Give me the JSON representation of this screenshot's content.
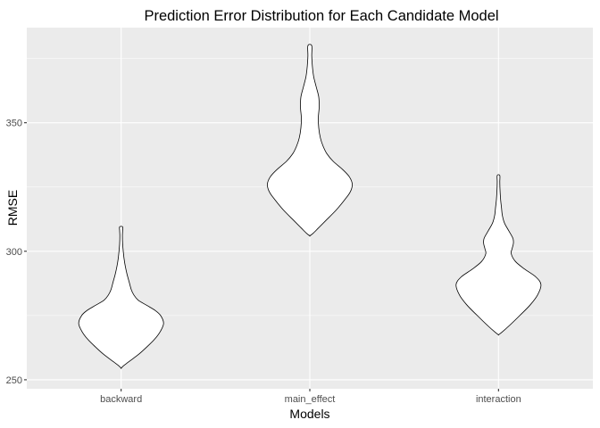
{
  "chart_data": {
    "type": "violin",
    "title": "Prediction Error Distribution for Each Candidate Model",
    "xlabel": "Models",
    "ylabel": "RMSE",
    "categories": [
      "backward",
      "main_effect",
      "interaction"
    ],
    "ylim": [
      246.5,
      387
    ],
    "yticks": [
      250,
      300,
      350
    ],
    "grid": true,
    "legend": "none",
    "colors": {
      "panel": "#ebebeb",
      "grid": "#ffffff",
      "violin_fill": "#ffffff",
      "violin_stroke": "#000000",
      "tick": "#333333"
    },
    "series": [
      {
        "category": "backward",
        "profile": [
          {
            "y": 254.5,
            "w": 0.0
          },
          {
            "y": 255.5,
            "w": 0.06
          },
          {
            "y": 257,
            "w": 0.18
          },
          {
            "y": 260,
            "w": 0.42
          },
          {
            "y": 263,
            "w": 0.62
          },
          {
            "y": 266,
            "w": 0.8
          },
          {
            "y": 269,
            "w": 0.93
          },
          {
            "y": 272,
            "w": 1.0
          },
          {
            "y": 275,
            "w": 0.93
          },
          {
            "y": 277,
            "w": 0.8
          },
          {
            "y": 279,
            "w": 0.6
          },
          {
            "y": 281,
            "w": 0.4
          },
          {
            "y": 283,
            "w": 0.3
          },
          {
            "y": 285,
            "w": 0.24
          },
          {
            "y": 288,
            "w": 0.19
          },
          {
            "y": 291,
            "w": 0.14
          },
          {
            "y": 294,
            "w": 0.1
          },
          {
            "y": 297,
            "w": 0.07
          },
          {
            "y": 300,
            "w": 0.05
          },
          {
            "y": 303,
            "w": 0.035
          },
          {
            "y": 306,
            "w": 0.03
          },
          {
            "y": 308,
            "w": 0.035
          },
          {
            "y": 309.5,
            "w": 0.035
          }
        ]
      },
      {
        "category": "main_effect",
        "profile": [
          {
            "y": 306,
            "w": 0.0
          },
          {
            "y": 307,
            "w": 0.08
          },
          {
            "y": 309,
            "w": 0.2
          },
          {
            "y": 312,
            "w": 0.38
          },
          {
            "y": 316,
            "w": 0.62
          },
          {
            "y": 320,
            "w": 0.82
          },
          {
            "y": 323,
            "w": 0.95
          },
          {
            "y": 326,
            "w": 1.0
          },
          {
            "y": 329,
            "w": 0.93
          },
          {
            "y": 332,
            "w": 0.76
          },
          {
            "y": 335,
            "w": 0.55
          },
          {
            "y": 338,
            "w": 0.4
          },
          {
            "y": 341,
            "w": 0.31
          },
          {
            "y": 344,
            "w": 0.25
          },
          {
            "y": 348,
            "w": 0.21
          },
          {
            "y": 352,
            "w": 0.2
          },
          {
            "y": 356,
            "w": 0.22
          },
          {
            "y": 360,
            "w": 0.21
          },
          {
            "y": 364,
            "w": 0.15
          },
          {
            "y": 368,
            "w": 0.09
          },
          {
            "y": 372,
            "w": 0.06
          },
          {
            "y": 376,
            "w": 0.045
          },
          {
            "y": 380,
            "w": 0.045
          }
        ]
      },
      {
        "category": "interaction",
        "profile": [
          {
            "y": 267.5,
            "w": 0.0
          },
          {
            "y": 268.5,
            "w": 0.08
          },
          {
            "y": 271,
            "w": 0.25
          },
          {
            "y": 275,
            "w": 0.5
          },
          {
            "y": 279,
            "w": 0.74
          },
          {
            "y": 283,
            "w": 0.92
          },
          {
            "y": 287,
            "w": 1.0
          },
          {
            "y": 290,
            "w": 0.88
          },
          {
            "y": 293,
            "w": 0.62
          },
          {
            "y": 296,
            "w": 0.4
          },
          {
            "y": 299,
            "w": 0.3
          },
          {
            "y": 301,
            "w": 0.32
          },
          {
            "y": 303,
            "w": 0.35
          },
          {
            "y": 305,
            "w": 0.34
          },
          {
            "y": 308,
            "w": 0.24
          },
          {
            "y": 311,
            "w": 0.14
          },
          {
            "y": 314,
            "w": 0.09
          },
          {
            "y": 317,
            "w": 0.07
          },
          {
            "y": 320,
            "w": 0.05
          },
          {
            "y": 324,
            "w": 0.035
          },
          {
            "y": 327,
            "w": 0.03
          },
          {
            "y": 329.5,
            "w": 0.03
          }
        ]
      }
    ]
  }
}
